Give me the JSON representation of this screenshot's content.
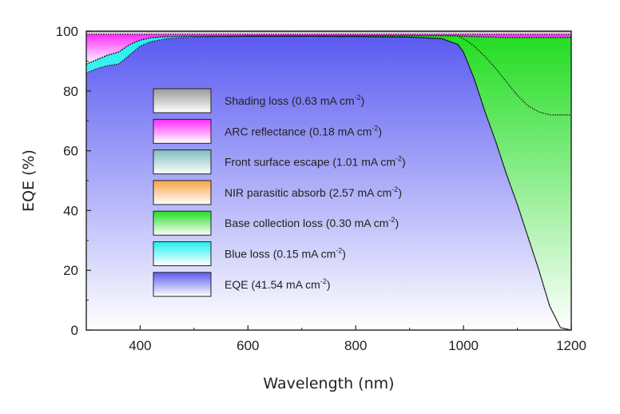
{
  "chart_data": {
    "type": "area",
    "xlabel": "Wavelength (nm)",
    "ylabel": "EQE (%)",
    "xlim": [
      300,
      1200
    ],
    "ylim": [
      0,
      100
    ],
    "x_ticks": [
      "400",
      "600",
      "800",
      "1000",
      "1200"
    ],
    "y_ticks": [
      "0",
      "20",
      "40",
      "60",
      "80",
      "100"
    ],
    "legend_placement": "center-left inside plot",
    "x": [
      300,
      320,
      340,
      360,
      380,
      400,
      420,
      450,
      500,
      550,
      600,
      700,
      800,
      900,
      960,
      990,
      1000,
      1020,
      1040,
      1060,
      1080,
      1100,
      1120,
      1140,
      1160,
      1180,
      1200
    ],
    "series": [
      {
        "name": "EQE",
        "label": "EQE (41.54 mA cm",
        "sup": "-2",
        "label_end": ")",
        "color": "#5a5af2",
        "values": [
          86,
          87.5,
          88.5,
          89,
          92,
          95,
          96.5,
          97.5,
          98,
          98.2,
          98.3,
          98.3,
          98.2,
          98,
          97.5,
          95.5,
          93,
          84,
          73,
          63,
          52,
          42,
          31,
          20,
          8,
          0.8,
          0
        ]
      },
      {
        "name": "Blue loss",
        "label": "Blue loss (0.15 mA cm",
        "sup": "-2",
        "label_end": ")",
        "color": "#22f0f0",
        "values": [
          89,
          90.5,
          92,
          93,
          95.5,
          97,
          97.8,
          98.2,
          98.3,
          98.3,
          98.3,
          98.3,
          98.2,
          98,
          97.5,
          95.5,
          93,
          84,
          73,
          63,
          52,
          42,
          31,
          20,
          8,
          0.8,
          0
        ]
      },
      {
        "name": "Base collection loss",
        "label": "Base collection loss (0.30 mA cm",
        "sup": "-2",
        "label_end": ")",
        "color": "#22dd22",
        "values": [
          89,
          90.5,
          92,
          93,
          95.5,
          97,
          97.8,
          98.2,
          98.3,
          98.3,
          98.4,
          98.4,
          98.5,
          98.5,
          98.5,
          98.4,
          98.3,
          98.2,
          98.1,
          98.0,
          97.9,
          97.9,
          97.9,
          97.9,
          97.9,
          97.9,
          97.9
        ]
      },
      {
        "name": "NIR parasitic absorb",
        "label": "NIR parasitic absorb (2.57 mA cm",
        "sup": "-2",
        "label_end": ")",
        "color": "#f7a445",
        "values": [
          89,
          90.5,
          92,
          93,
          95.5,
          97,
          97.8,
          98.2,
          98.3,
          98.3,
          98.4,
          98.4,
          98.5,
          98.5,
          98.5,
          98.4,
          97.5,
          95,
          91.5,
          87.5,
          83,
          78.5,
          75,
          73,
          72,
          72,
          72
        ]
      },
      {
        "name": "Front surface escape",
        "label": "Front surface escape (1.01 mA cm",
        "sup": "-2",
        "label_end": ")",
        "color": "#7fbcbf",
        "values": [
          89,
          90.5,
          92,
          93,
          95.5,
          97,
          97.8,
          98.2,
          98.3,
          98.3,
          98.4,
          98.4,
          98.5,
          98.5,
          98.5,
          98.4,
          98.3,
          98.2,
          98.1,
          98.0,
          97.9,
          97.9,
          97.9,
          97.9,
          97.9,
          97.9,
          97.9
        ]
      },
      {
        "name": "ARC reflectance",
        "label": "ARC reflectance (0.18 mA cm",
        "sup": "-2",
        "label_end": ")",
        "color": "#ff2bff",
        "values": [
          99,
          99,
          99,
          99,
          99,
          99,
          99,
          99,
          99,
          99,
          99,
          99,
          99,
          99,
          99,
          99,
          99,
          99,
          99,
          99,
          99,
          99,
          99,
          99,
          99,
          99,
          99
        ]
      },
      {
        "name": "Shading loss",
        "label": "Shading loss (0.63 mA cm",
        "sup": "-2",
        "label_end": ")",
        "color": "#9a9a9a",
        "values": [
          100,
          100,
          100,
          100,
          100,
          100,
          100,
          100,
          100,
          100,
          100,
          100,
          100,
          100,
          100,
          100,
          100,
          100,
          100,
          100,
          100,
          100,
          100,
          100,
          100,
          100,
          100
        ]
      }
    ],
    "legend_order": [
      "Shading loss",
      "ARC reflectance",
      "Front surface escape",
      "NIR parasitic absorb",
      "Base collection loss",
      "Blue loss",
      "EQE"
    ]
  }
}
